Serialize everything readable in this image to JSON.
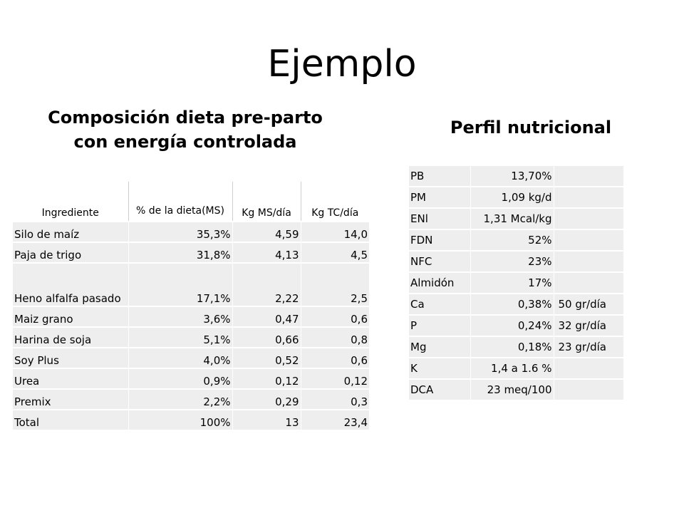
{
  "slide": {
    "title": "Ejemplo",
    "left_heading_line1": "Composición dieta pre-parto",
    "left_heading_line2": "con energía controlada",
    "right_heading": "Perfil nutricional"
  },
  "diet_table": {
    "headers": [
      "Ingrediente",
      "% de la dieta(MS)",
      "Kg MS/día",
      "Kg TC/día"
    ],
    "rows": [
      [
        "Silo de maíz",
        "35,3%",
        "4,59",
        "14,0"
      ],
      [
        "Paja de trigo",
        "31,8%",
        "4,13",
        "4,5"
      ],
      [
        "Heno alfalfa pasado",
        "17,1%",
        "2,22",
        "2,5"
      ],
      [
        "Maiz grano",
        "3,6%",
        "0,47",
        "0,6"
      ],
      [
        "Harina de soja",
        "5,1%",
        "0,66",
        "0,8"
      ],
      [
        "Soy Plus",
        "4,0%",
        "0,52",
        "0,6"
      ],
      [
        "Urea",
        "0,9%",
        "0,12",
        "0,12"
      ],
      [
        "Premix",
        "2,2%",
        "0,29",
        "0,3"
      ],
      [
        "Total",
        "100%",
        "13",
        "23,4"
      ]
    ]
  },
  "profile_table": {
    "rows": [
      [
        "PB",
        "13,70%",
        ""
      ],
      [
        "PM",
        "1,09 kg/d",
        ""
      ],
      [
        "ENl",
        "1,31 Mcal/kg",
        ""
      ],
      [
        "FDN",
        "52%",
        ""
      ],
      [
        "NFC",
        "23%",
        ""
      ],
      [
        "Almidón",
        "17%",
        ""
      ],
      [
        "Ca",
        "0,38%",
        "50 gr/día"
      ],
      [
        "P",
        "0,24%",
        "32 gr/día"
      ],
      [
        "Mg",
        "0,18%",
        "23 gr/día"
      ],
      [
        "K",
        "1,4 a 1.6 %",
        ""
      ],
      [
        "DCA",
        "23 meq/100",
        ""
      ]
    ]
  }
}
